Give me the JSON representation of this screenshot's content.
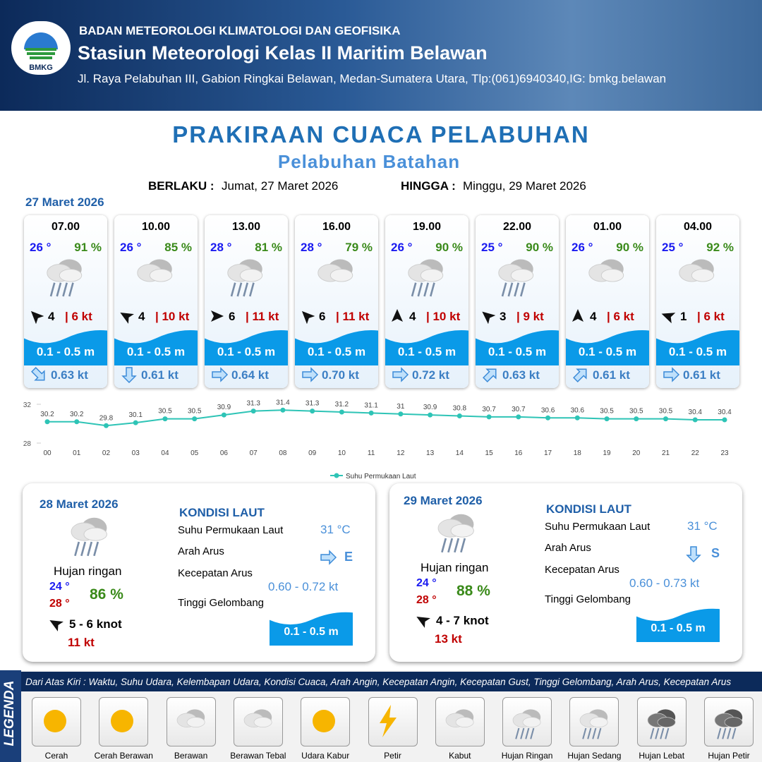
{
  "header": {
    "logo": "BMKG",
    "agency": "BADAN METEOROLOGI KLIMATOLOGI DAN GEOFISIKA",
    "station": "Stasiun Meteorologi Kelas II Maritim Belawan",
    "address": "Jl. Raya Pelabuhan III, Gabion Ringkai Belawan, Medan-Sumatera Utara, Tlp:(061)6940340,IG: bmkg.belawan"
  },
  "title": "PRAKIRAAN CUACA PELABUHAN",
  "subtitle": "Pelabuhan Batahan",
  "validity": {
    "from_label": "BERLAKU :",
    "from": "Jumat, 27 Maret 2026",
    "to_label": "HINGGA :",
    "to": "Minggu, 29 Maret 2026"
  },
  "day1_date": "27 Maret 2026",
  "forecasts": [
    {
      "time": "07.00",
      "temp": "26 °",
      "humidity": "91 %",
      "wind": "4",
      "gust": "| 6 kt",
      "wave": "0.1 - 0.5 m",
      "current": "0.63 kt"
    },
    {
      "time": "10.00",
      "temp": "26 °",
      "humidity": "85 %",
      "wind": "4",
      "gust": "| 10 kt",
      "wave": "0.1 - 0.5 m",
      "current": "0.61 kt"
    },
    {
      "time": "13.00",
      "temp": "28 °",
      "humidity": "81 %",
      "wind": "6",
      "gust": "| 11 kt",
      "wave": "0.1 - 0.5 m",
      "current": "0.64 kt"
    },
    {
      "time": "16.00",
      "temp": "28 °",
      "humidity": "79 %",
      "wind": "6",
      "gust": "| 11 kt",
      "wave": "0.1 - 0.5 m",
      "current": "0.70 kt"
    },
    {
      "time": "19.00",
      "temp": "26 °",
      "humidity": "90 %",
      "wind": "4",
      "gust": "| 10 kt",
      "wave": "0.1 - 0.5 m",
      "current": "0.72 kt"
    },
    {
      "time": "22.00",
      "temp": "25 °",
      "humidity": "90 %",
      "wind": "3",
      "gust": "| 9 kt",
      "wave": "0.1 - 0.5 m",
      "current": "0.63 kt"
    },
    {
      "time": "01.00",
      "temp": "26 °",
      "humidity": "90 %",
      "wind": "4",
      "gust": "| 6 kt",
      "wave": "0.1 - 0.5 m",
      "current": "0.61 kt"
    },
    {
      "time": "04.00",
      "temp": "25 °",
      "humidity": "92 %",
      "wind": "1",
      "gust": "| 6 kt",
      "wave": "0.1 - 0.5 m",
      "current": "0.61 kt"
    }
  ],
  "chart_data": {
    "type": "line",
    "categories": [
      "00",
      "01",
      "02",
      "03",
      "04",
      "05",
      "06",
      "07",
      "08",
      "09",
      "10",
      "11",
      "12",
      "13",
      "14",
      "15",
      "16",
      "17",
      "18",
      "19",
      "20",
      "21",
      "22",
      "23"
    ],
    "series": [
      {
        "name": "Suhu Permukaan Laut",
        "color": "#2ec4b6",
        "values": [
          30.2,
          30.2,
          29.8,
          30.1,
          30.5,
          30.5,
          30.9,
          31.3,
          31.4,
          31.3,
          31.2,
          31.1,
          31.0,
          30.9,
          30.8,
          30.7,
          30.7,
          30.6,
          30.6,
          30.5,
          30.5,
          30.5,
          30.4,
          30.4
        ]
      }
    ],
    "ylim": [
      28,
      32
    ],
    "yticks": [
      28,
      32
    ]
  },
  "days": [
    {
      "date": "28 Maret 2026",
      "condition": "Hujan ringan",
      "tmin": "24 °",
      "tmax": "28 °",
      "humidity": "86 %",
      "wind": "5 - 6 knot",
      "gust": "11 kt",
      "sea_title": "KONDISI LAUT",
      "sst_label": "Suhu Permukaan Laut",
      "sst": "31 °C",
      "dir_label": "Arah Arus",
      "dir": "E",
      "speed_label": "Kecepatan Arus",
      "speed": "0.60 - 0.72 kt",
      "wave_label": "Tinggi Gelombang",
      "wave": "0.1 - 0.5 m"
    },
    {
      "date": "29 Maret 2026",
      "condition": "Hujan ringan",
      "tmin": "24 °",
      "tmax": "28 °",
      "humidity": "88 %",
      "wind": "4 - 7 knot",
      "gust": "13 kt",
      "sea_title": "KONDISI LAUT",
      "sst_label": "Suhu Permukaan Laut",
      "sst": "31 °C",
      "dir_label": "Arah Arus",
      "dir": "S",
      "speed_label": "Kecepatan Arus",
      "speed": "0.60  - 0.73 kt",
      "wave_label": "Tinggi Gelombang",
      "wave": "0.1 - 0.5 m"
    }
  ],
  "legend": {
    "title": "LEGENDA",
    "description": "Dari Atas Kiri : Waktu, Suhu Udara, Kelembapan Udara, Kondisi Cuaca, Arah Angin, Kecepatan Angin, Kecepatan Gust, Tinggi Gelombang, Arah Arus, Kecepatan Arus",
    "items": [
      "Cerah",
      "Cerah Berawan",
      "Berawan",
      "Berawan Tebal",
      "Udara Kabur",
      "Petir",
      "Kabut",
      "Hujan Ringan",
      "Hujan Sedang",
      "Hujan Lebat",
      "Hujan Petir"
    ]
  }
}
